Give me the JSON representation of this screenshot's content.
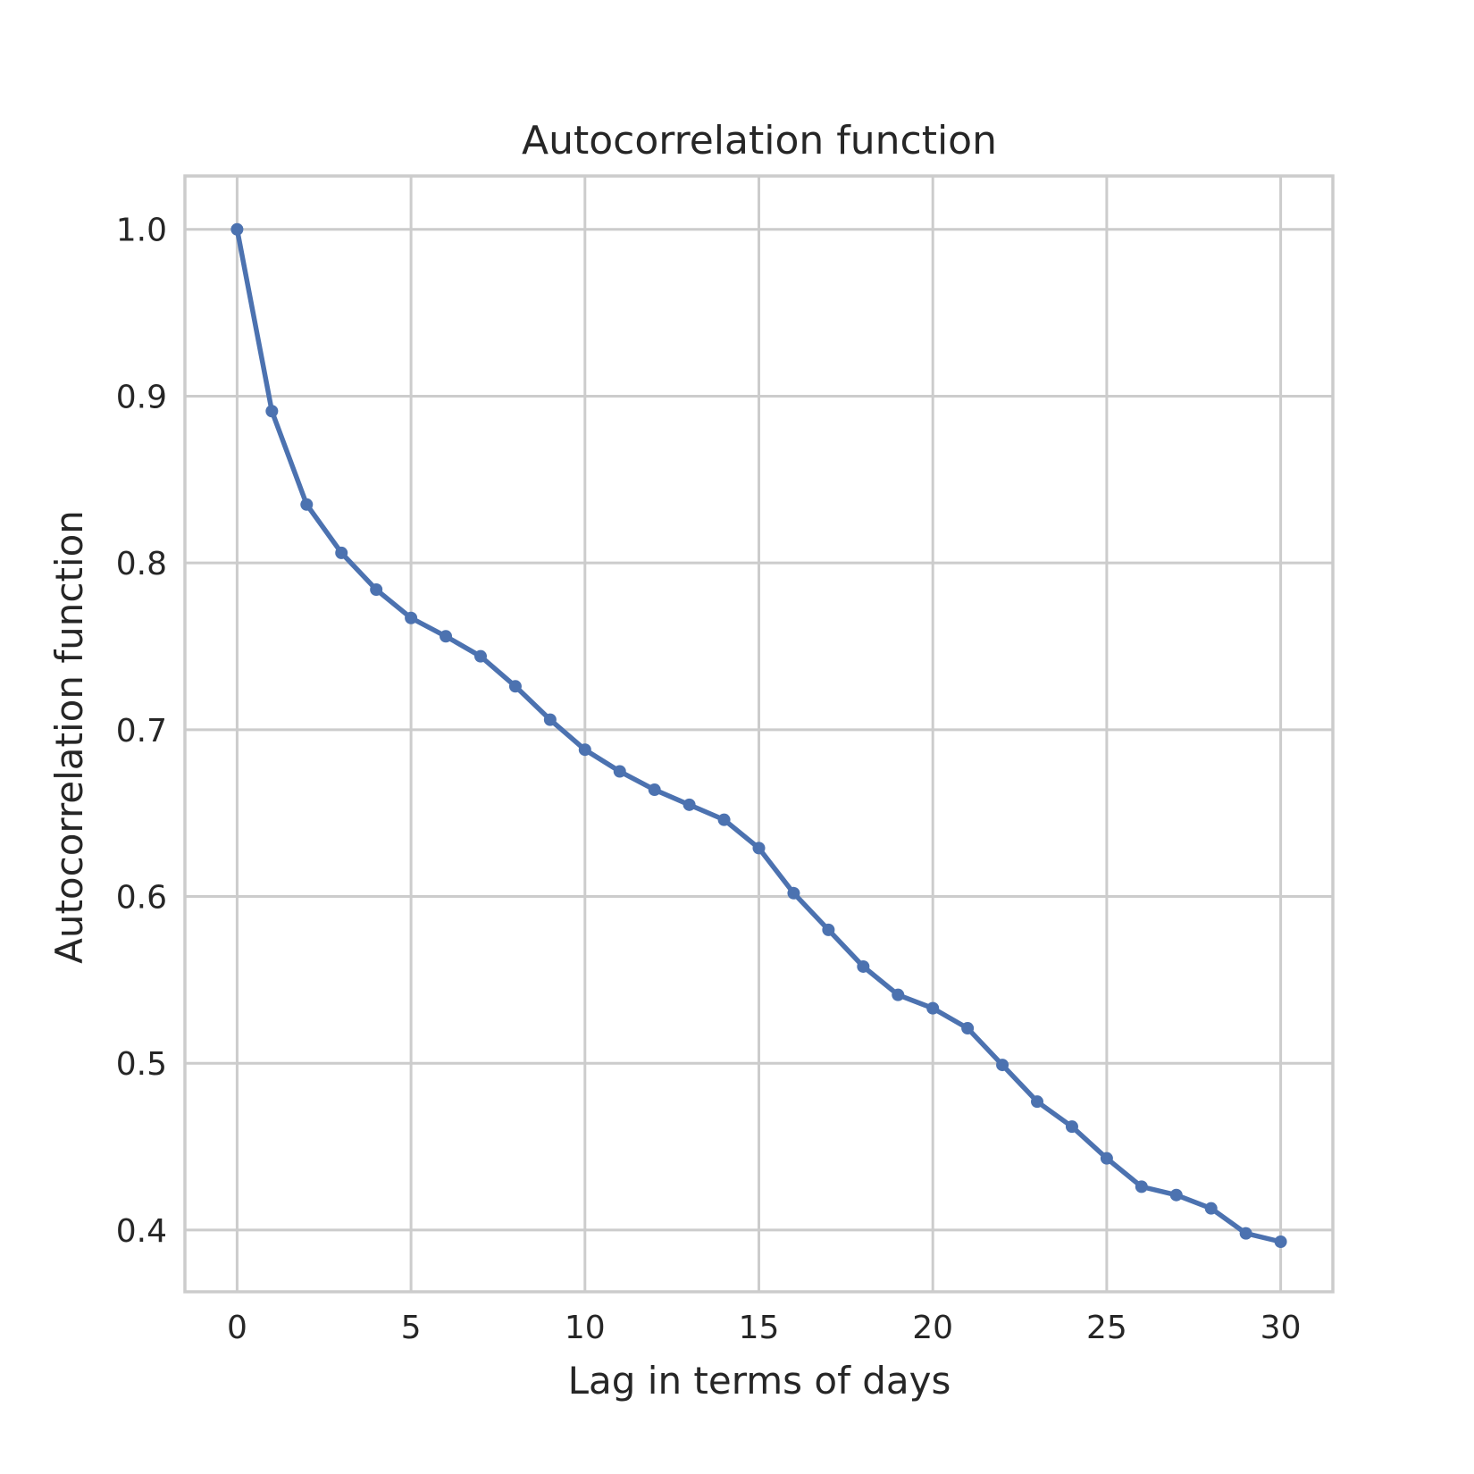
{
  "chart_data": {
    "type": "line",
    "title": "Autocorrelation function",
    "xlabel": "Lag in terms of days",
    "ylabel": "Autocorrelation function",
    "xlim": [
      -1.5,
      31.5
    ],
    "ylim": [
      0.363,
      1.032
    ],
    "xticks": [
      0,
      5,
      10,
      15,
      20,
      25,
      30
    ],
    "xtick_labels": [
      "0",
      "5",
      "10",
      "15",
      "20",
      "25",
      "30"
    ],
    "yticks": [
      0.4,
      0.5,
      0.6,
      0.7,
      0.8,
      0.9,
      1.0
    ],
    "ytick_labels": [
      "0.4",
      "0.5",
      "0.6",
      "0.7",
      "0.8",
      "0.9",
      "1.0"
    ],
    "grid": true,
    "legend": "none",
    "series": [
      {
        "color": "#4c72b0",
        "marker": "circle",
        "x": [
          0,
          1,
          2,
          3,
          4,
          5,
          6,
          7,
          8,
          9,
          10,
          11,
          12,
          13,
          14,
          15,
          16,
          17,
          18,
          19,
          20,
          21,
          22,
          23,
          24,
          25,
          26,
          27,
          28,
          29,
          30
        ],
        "y": [
          1.0,
          0.891,
          0.835,
          0.806,
          0.784,
          0.767,
          0.756,
          0.744,
          0.726,
          0.706,
          0.688,
          0.675,
          0.664,
          0.655,
          0.646,
          0.629,
          0.602,
          0.58,
          0.558,
          0.541,
          0.533,
          0.521,
          0.499,
          0.477,
          0.462,
          0.443,
          0.426,
          0.421,
          0.413,
          0.398,
          0.393
        ]
      }
    ]
  }
}
